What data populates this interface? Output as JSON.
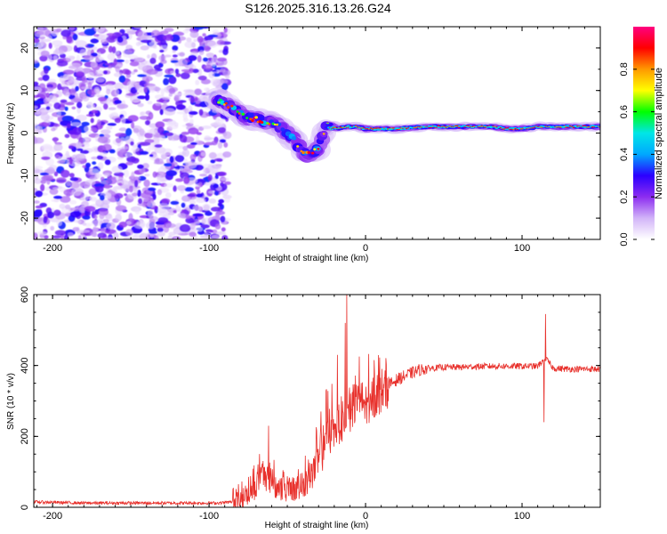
{
  "title": "S126.2025.316.13.26.G24",
  "colors": {
    "frame": "#000000",
    "snr_line": "#e8312c",
    "background": "#ffffff"
  },
  "chart_data": [
    {
      "type": "heatmap",
      "name": "spectrogram",
      "xlabel": "Height of straight line (km)",
      "ylabel": "Frequency (Hz)",
      "xlim": [
        -212,
        150
      ],
      "ylim": [
        -25,
        25
      ],
      "xticks": [
        -200,
        -100,
        0,
        100
      ],
      "yticks": [
        -20,
        -10,
        0,
        10,
        20
      ],
      "xtick_labels": [
        "-200",
        "-100",
        "0",
        "100"
      ],
      "ytick_labels": [
        "-20",
        "-10",
        "0",
        "10",
        "20"
      ],
      "noise_region_x": [
        -212,
        -88
      ],
      "ridge": {
        "x": [
          -95,
          -85,
          -78,
          -72,
          -66,
          -60,
          -55,
          -50,
          -45,
          -40,
          -35,
          -30,
          -27,
          -25,
          -22,
          -18,
          -12,
          -6,
          0,
          10,
          20,
          40,
          60,
          80,
          90,
          100,
          110,
          120,
          150
        ],
        "y": [
          8,
          6,
          4,
          3.5,
          3,
          2.5,
          1.5,
          0,
          -2,
          -4.5,
          -5,
          -3.5,
          0,
          2,
          1.5,
          1,
          1.5,
          1.5,
          1,
          1,
          1,
          1.5,
          1.5,
          1.5,
          1,
          1,
          1.5,
          1.5,
          1.5
        ]
      }
    },
    {
      "type": "colorbar",
      "name": "amplitude-colorbar",
      "label": "Normalized spectral amplitude",
      "range": [
        0,
        1
      ],
      "ticks": [
        0,
        0.2,
        0.4,
        0.6,
        0.8
      ],
      "tick_labels": [
        "0.0",
        "0.2",
        "0.4",
        "0.6",
        "0.8"
      ],
      "stops": [
        "#ffffff",
        "#d2b4f8",
        "#8c2cf0",
        "#2b00ff",
        "#00a8ff",
        "#00e6e6",
        "#00ff00",
        "#ffff00",
        "#ff9900",
        "#ff0000",
        "#ff0080"
      ]
    },
    {
      "type": "line",
      "name": "snr",
      "xlabel": "Height of straight line (km)",
      "ylabel": "SNR (10 * v/v)",
      "xlim": [
        -212,
        150
      ],
      "ylim": [
        0,
        600
      ],
      "xticks": [
        -200,
        -100,
        0,
        100
      ],
      "yticks": [
        0,
        200,
        400,
        600
      ],
      "xtick_labels": [
        "-200",
        "-100",
        "0",
        "100"
      ],
      "ytick_labels": [
        "0",
        "200",
        "400",
        "600"
      ],
      "series": [
        {
          "name": "SNR",
          "x": [
            -212,
            -180,
            -140,
            -110,
            -95,
            -85,
            -80,
            -75,
            -70,
            -65,
            -60,
            -55,
            -50,
            -45,
            -40,
            -35,
            -30,
            -25,
            -20,
            -15,
            -10,
            -5,
            0,
            5,
            10,
            15,
            20,
            25,
            30,
            35,
            40,
            50,
            60,
            70,
            80,
            90,
            100,
            110,
            115,
            120,
            130,
            140,
            150
          ],
          "y": [
            15,
            12,
            12,
            12,
            12,
            15,
            20,
            40,
            60,
            100,
            70,
            50,
            40,
            50,
            60,
            90,
            130,
            200,
            230,
            250,
            270,
            300,
            290,
            310,
            330,
            345,
            360,
            370,
            380,
            388,
            392,
            395,
            395,
            397,
            398,
            398,
            398,
            398,
            420,
            392,
            390,
            390,
            390
          ]
        }
      ],
      "spikes": [
        {
          "x": -12,
          "y": 600
        },
        {
          "x": -13,
          "y": 520
        },
        {
          "x": -18,
          "y": 430
        },
        {
          "x": -62,
          "y": 230
        },
        {
          "x": 114,
          "y": 580
        },
        {
          "x": 115,
          "y": 545
        },
        {
          "x": 114,
          "y": 240
        }
      ]
    }
  ]
}
